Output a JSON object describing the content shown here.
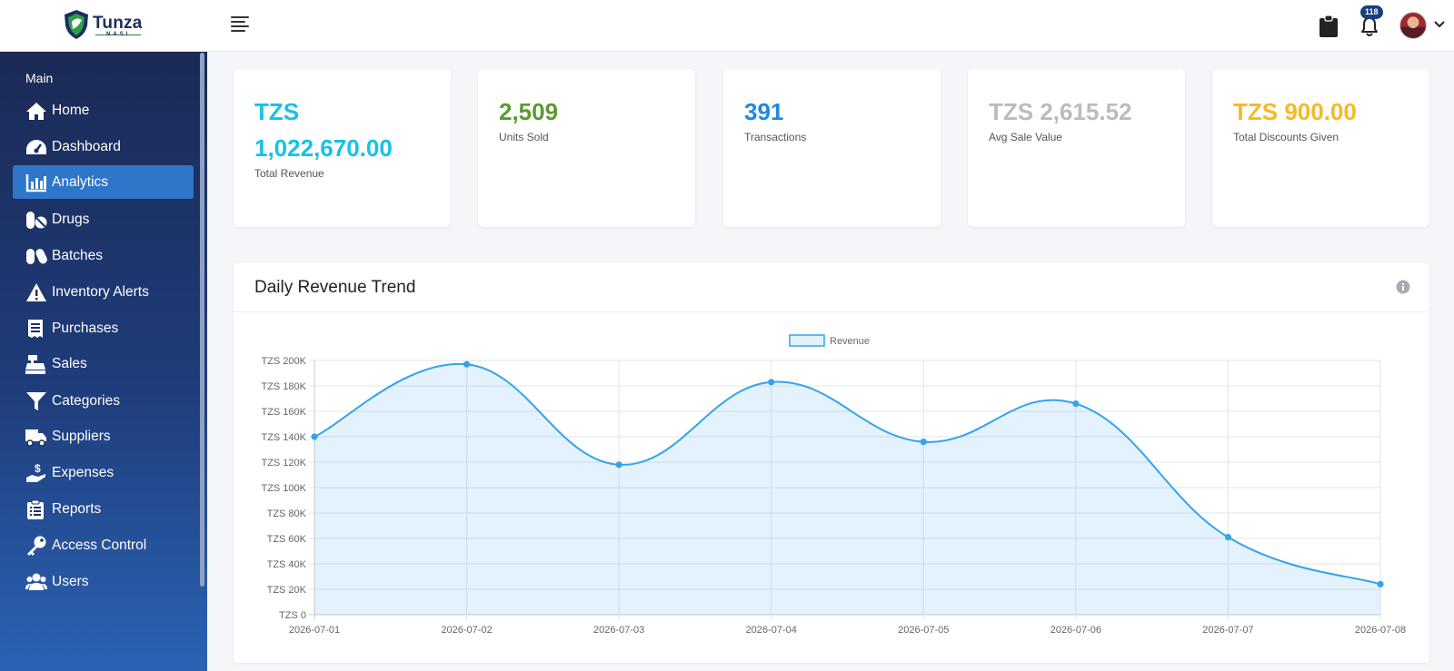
{
  "app": {
    "logo_text": "Tunza",
    "logo_sub": "NASI",
    "notification_count": "118"
  },
  "sidebar": {
    "section_title": "Main",
    "items": [
      {
        "label": "Home",
        "icon": "home-icon"
      },
      {
        "label": "Dashboard",
        "icon": "dashboard-icon"
      },
      {
        "label": "Analytics",
        "icon": "analytics-icon",
        "active": true
      },
      {
        "label": "Drugs",
        "icon": "pills-icon"
      },
      {
        "label": "Batches",
        "icon": "capsules-icon"
      },
      {
        "label": "Inventory Alerts",
        "icon": "warning-icon"
      },
      {
        "label": "Purchases",
        "icon": "receipt-icon"
      },
      {
        "label": "Sales",
        "icon": "cash-register-icon"
      },
      {
        "label": "Categories",
        "icon": "filter-icon"
      },
      {
        "label": "Suppliers",
        "icon": "truck-icon"
      },
      {
        "label": "Expenses",
        "icon": "hand-dollar-icon"
      },
      {
        "label": "Reports",
        "icon": "clipboard-list-icon"
      },
      {
        "label": "Access Control",
        "icon": "key-icon"
      },
      {
        "label": "Users",
        "icon": "users-icon"
      }
    ]
  },
  "stats": [
    {
      "value_line1": "TZS",
      "value_line2": "1,022,670.00",
      "caption": "Total Revenue",
      "color": "#17c1e8"
    },
    {
      "value": "2,509",
      "caption": "Units Sold",
      "color": "#5b9a32"
    },
    {
      "value": "391",
      "caption": "Transactions",
      "color": "#1e88e5"
    },
    {
      "value": "TZS 2,615.52",
      "caption": "Avg Sale Value",
      "color": "#b8bcc2"
    },
    {
      "value": "TZS 900.00",
      "caption": "Total Discounts Given",
      "color": "#f7b924"
    }
  ],
  "chart_panel": {
    "title": "Daily Revenue Trend"
  },
  "chart_data": {
    "type": "area",
    "title": "",
    "xlabel": "",
    "ylabel": "",
    "x": [
      "2026-07-01",
      "2026-07-02",
      "2026-07-03",
      "2026-07-04",
      "2026-07-05",
      "2026-07-06",
      "2026-07-07",
      "2026-07-08"
    ],
    "series": [
      {
        "name": "Revenue",
        "values": [
          140000,
          197000,
          118000,
          183000,
          136000,
          166000,
          61000,
          24000
        ],
        "color": "#36a2eb"
      }
    ],
    "ylim": [
      0,
      200000
    ],
    "y_ticks": [
      0,
      20000,
      40000,
      60000,
      80000,
      100000,
      120000,
      140000,
      160000,
      180000,
      200000
    ],
    "y_tick_labels": [
      "TZS 0",
      "TZS 20K",
      "TZS 40K",
      "TZS 60K",
      "TZS 80K",
      "TZS 100K",
      "TZS 120K",
      "TZS 140K",
      "TZS 160K",
      "TZS 180K",
      "TZS 200K"
    ],
    "grid": true,
    "legend_position": "top"
  }
}
